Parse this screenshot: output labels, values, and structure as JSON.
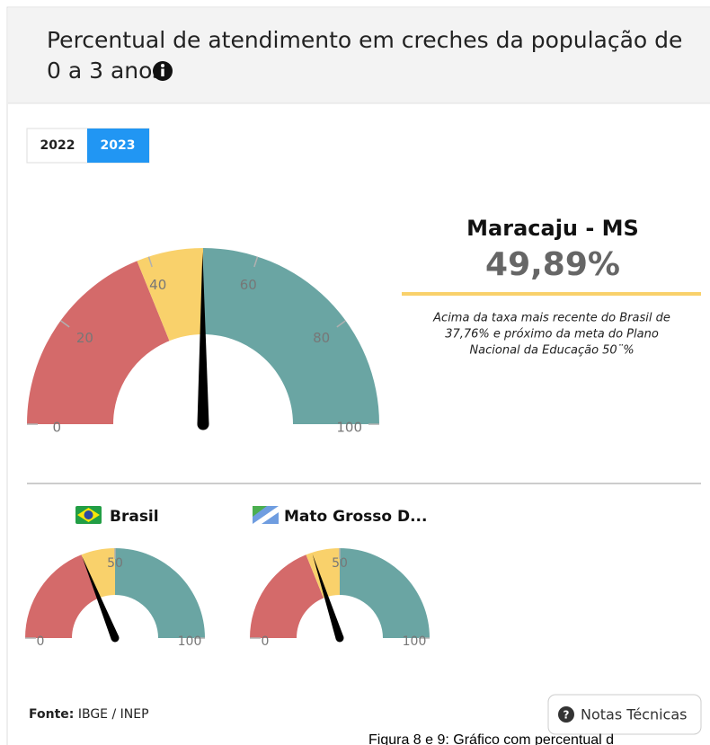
{
  "header": {
    "title_lines": [
      "Percentual de atendimento em creches da população de",
      "0 a 3 anos"
    ]
  },
  "tabs": [
    "2022",
    "2023"
  ],
  "description_lines": [
    "Acima da taxa mais recente do Brasil de",
    "37,76% e próximo da meta do Plano",
    "Nacional da Educação 50¨%"
  ],
  "chart_data": [
    {
      "type": "gauge",
      "title": "Maracaju - MS",
      "values": [
        49.89
      ],
      "value_labels": [
        "49,89%"
      ],
      "ylim": [
        0,
        100
      ],
      "yticks": [
        0,
        20,
        40,
        60,
        80,
        100
      ],
      "bands": [
        {
          "from": 0,
          "to": 37.76,
          "color": "#d46a6a"
        },
        {
          "from": 37.76,
          "to": 50,
          "color": "#f9d16b"
        },
        {
          "from": 50,
          "to": 100,
          "color": "#6aa5a3"
        }
      ]
    },
    {
      "type": "gauge",
      "title": "Brasil",
      "values": [
        37.76
      ],
      "ylim": [
        0,
        100
      ],
      "yticks": [
        0,
        50,
        100
      ],
      "bands": [
        {
          "from": 0,
          "to": 37.76,
          "color": "#d46a6a"
        },
        {
          "from": 37.76,
          "to": 50,
          "color": "#f9d16b"
        },
        {
          "from": 50,
          "to": 100,
          "color": "#6aa5a3"
        }
      ]
    },
    {
      "type": "gauge",
      "title": "Mato Grosso D...",
      "values": [
        40
      ],
      "ylim": [
        0,
        100
      ],
      "yticks": [
        0,
        50,
        100
      ],
      "bands": [
        {
          "from": 0,
          "to": 37.76,
          "color": "#d46a6a"
        },
        {
          "from": 37.76,
          "to": 50,
          "color": "#f9d16b"
        },
        {
          "from": 50,
          "to": 100,
          "color": "#6aa5a3"
        }
      ]
    }
  ],
  "footer": {
    "source_label": "Fonte:",
    "source": "IBGE / INEP",
    "button": "Notas Técnicas"
  },
  "caption": "Figura 8 e 9: Gráfico com percentual d"
}
